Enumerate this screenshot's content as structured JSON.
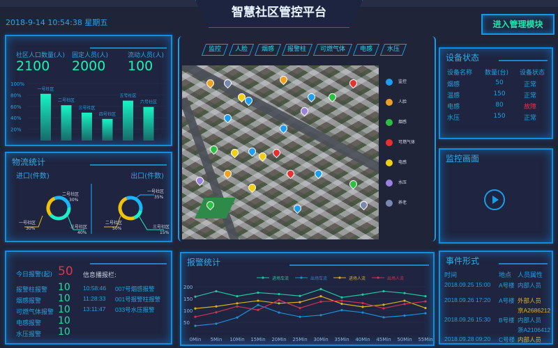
{
  "header": {
    "datetime": "2018-9-14  10:54:38  星期五",
    "title": "智慧社区管控平台",
    "manage_button": "进入管理模块"
  },
  "population": {
    "total_label": "社区人口数量(人)",
    "total": "2100",
    "fixed_label": "固定人员(人)",
    "fixed": "2000",
    "floating_label": "流动人员(人)",
    "floating": "100"
  },
  "chart_data": [
    {
      "type": "bar",
      "categories": [
        "一号社区",
        "二号社区",
        "三号社区",
        "四号社区",
        "五号社区",
        "六号社区"
      ],
      "values": [
        82,
        62,
        49,
        38,
        70,
        59
      ],
      "yticks": [
        "20%",
        "40%",
        "60%",
        "80%",
        "100%"
      ],
      "ylim": [
        0,
        100
      ],
      "color": "#16f0c0"
    },
    {
      "type": "pie",
      "title": "进口(件数)",
      "slices": [
        {
          "label": "二号社区",
          "value": 30,
          "color": "#18b8f8"
        },
        {
          "label": "三号社区",
          "value": 40,
          "color": "#19f0c8"
        },
        {
          "label": "一号社区",
          "value": 30,
          "color": "#f0c20a"
        }
      ]
    },
    {
      "type": "pie",
      "title": "出口(件数)",
      "slices": [
        {
          "label": "一号社区",
          "value": 35,
          "color": "#18b8f8"
        },
        {
          "label": "三号社区",
          "value": 15,
          "color": "#19f0c8"
        },
        {
          "label": "二号社区",
          "value": 50,
          "color": "#f0c20a"
        }
      ]
    },
    {
      "type": "line",
      "title": "报警统计",
      "x": [
        "0Min",
        "5Min",
        "10Min",
        "15Min",
        "20Min",
        "25Min",
        "30Min",
        "35Min",
        "40Min",
        "45Min",
        "50Min",
        "55Min"
      ],
      "yticks": [
        50,
        100,
        150,
        200
      ],
      "ylim": [
        0,
        200
      ],
      "legend": "top",
      "series": [
        {
          "name": "进场车流",
          "color": "#1fc8a0",
          "values": [
            158,
            181,
            160,
            175,
            169,
            161,
            190,
            155,
            167,
            181,
            173,
            160
          ]
        },
        {
          "name": "出场车流",
          "color": "#1a8fd8",
          "values": [
            35,
            44,
            70,
            123,
            91,
            73,
            80,
            101,
            91,
            71,
            78,
            88
          ]
        },
        {
          "name": "进场人流",
          "color": "#d8b020",
          "values": [
            108,
            117,
            130,
            141,
            130,
            135,
            160,
            128,
            115,
            124,
            141,
            110
          ]
        },
        {
          "name": "出场人流",
          "color": "#d83050",
          "values": [
            73,
            92,
            117,
            102,
            144,
            110,
            137,
            141,
            131,
            109,
            127,
            138
          ]
        }
      ]
    }
  ],
  "logistics": {
    "title": "物流统计"
  },
  "tabs": [
    "监控",
    "人脸",
    "烟感",
    "报警柱",
    "可燃气体",
    "电感",
    "水压"
  ],
  "map_legend": [
    {
      "label": "监控",
      "color": "#1e9ef0"
    },
    {
      "label": "人脸",
      "color": "#f0a020"
    },
    {
      "label": "烟感",
      "color": "#2cc040"
    },
    {
      "label": "可燃气体",
      "color": "#e83030"
    },
    {
      "label": "电感",
      "color": "#f0d010"
    },
    {
      "label": "水压",
      "color": "#9a80e0"
    },
    {
      "label": "养老",
      "color": "#7888b0"
    }
  ],
  "alarms": {
    "today_label": "今日报警(起)",
    "today": "50",
    "items": [
      {
        "label": "报警柱报警",
        "value": "10"
      },
      {
        "label": "烟感报警",
        "value": "10"
      },
      {
        "label": "可燃气体报警",
        "value": "10"
      },
      {
        "label": "电感报警",
        "value": "10"
      },
      {
        "label": "水压报警",
        "value": "10"
      }
    ],
    "broadcast_label": "信息播报栏:",
    "broadcast": [
      {
        "time": "10:58:46",
        "text": "007号烟感报警"
      },
      {
        "time": "11:28:33",
        "text": "001号报警柱报警"
      },
      {
        "time": "13:11:47",
        "text": "033号水压报警"
      }
    ]
  },
  "devices": {
    "title": "设备状态",
    "headers": [
      "设备名称",
      "数量(台)",
      "设备状态"
    ],
    "rows": [
      {
        "name": "烟感",
        "count": "50",
        "status": "正常",
        "color": "#1fa3e0"
      },
      {
        "name": "温感",
        "count": "150",
        "status": "正常",
        "color": "#1fa3e0"
      },
      {
        "name": "电感",
        "count": "80",
        "status": "故障",
        "color": "#e83050"
      },
      {
        "name": "水压",
        "count": "150",
        "status": "正常",
        "color": "#1fa3e0"
      }
    ]
  },
  "monitor": {
    "title": "监控画面"
  },
  "events": {
    "title": "事件形式",
    "headers": [
      "时间",
      "地点",
      "人员属性"
    ],
    "rows": [
      {
        "time": "2018.09.25 15:00",
        "place": "A号楼",
        "attr": "内部人员",
        "plate": "",
        "color": "#1fa3e0"
      },
      {
        "time": "2018.09.26 17:20",
        "place": "A号楼",
        "attr": "外部人员",
        "plate": "京A2686212",
        "color": "#e0b020"
      },
      {
        "time": "2018.09.26 15:30",
        "place": "B号楼",
        "attr": "内部人员",
        "plate": "浙A2106412",
        "color": "#1fa3e0"
      },
      {
        "time": "2018.09.28 09:20",
        "place": "C号楼",
        "attr": "内部人员",
        "plate": "",
        "color": "#e0b020"
      }
    ]
  }
}
